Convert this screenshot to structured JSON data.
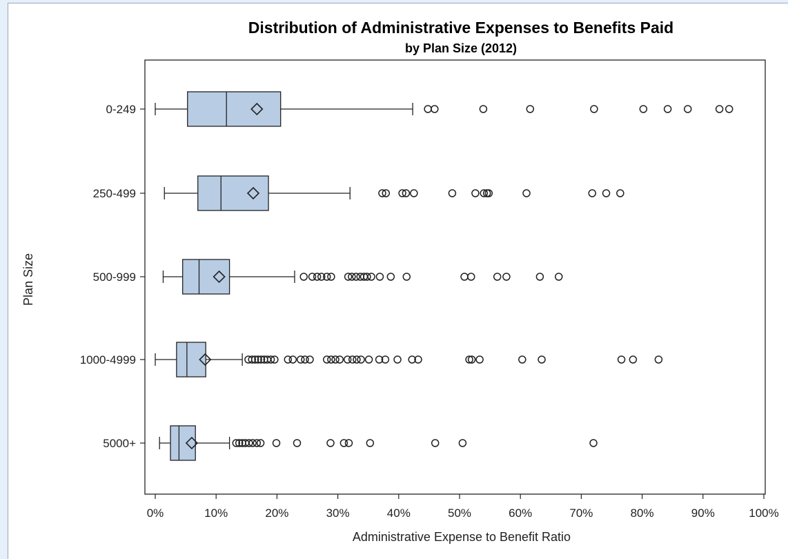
{
  "chart_data": {
    "type": "boxplot",
    "title": "Distribution of Administrative Expenses to Benefits Paid",
    "subtitle": "by Plan Size (2012)",
    "xlabel": "Administrative Expense to Benefit Ratio",
    "ylabel": "Plan Size",
    "xlim": [
      0,
      100
    ],
    "x_ticks": [
      0,
      10,
      20,
      30,
      40,
      50,
      60,
      70,
      80,
      90,
      100
    ],
    "x_tick_labels": [
      "0%",
      "10%",
      "20%",
      "30%",
      "40%",
      "50%",
      "60%",
      "70%",
      "80%",
      "90%",
      "100%"
    ],
    "orientation": "horizontal",
    "grid": false,
    "colors": {
      "box_fill": "#b8cce4",
      "stroke": "#222222"
    },
    "categories": [
      "0-249",
      "250-499",
      "500-999",
      "1000-4999",
      "5000+"
    ],
    "series": [
      {
        "category": "0-249",
        "whisker_low": 0,
        "q1": 5.3,
        "median": 11.7,
        "q3": 20.6,
        "whisker_high": 42.3,
        "mean": 16.7,
        "outliers": [
          44.8,
          45.9,
          53.9,
          61.6,
          72.1,
          80.2,
          84.2,
          87.5,
          92.7,
          94.3
        ]
      },
      {
        "category": "250-499",
        "whisker_low": 1.5,
        "q1": 7.0,
        "median": 10.8,
        "q3": 18.6,
        "whisker_high": 32.0,
        "mean": 16.1,
        "outliers": [
          37.3,
          37.9,
          40.6,
          41.2,
          42.5,
          48.8,
          52.6,
          54.0,
          54.5,
          54.8,
          61.0,
          71.8,
          74.1,
          76.4
        ]
      },
      {
        "category": "500-999",
        "whisker_low": 1.3,
        "q1": 4.5,
        "median": 7.2,
        "q3": 12.2,
        "whisker_high": 22.9,
        "mean": 10.5,
        "outliers": [
          24.4,
          25.8,
          26.6,
          27.3,
          28.2,
          28.9,
          31.7,
          32.3,
          33.0,
          33.7,
          34.3,
          34.8,
          35.5,
          36.9,
          38.7,
          41.3,
          50.8,
          51.9,
          56.2,
          57.7,
          63.2,
          66.3
        ]
      },
      {
        "category": "1000-4999",
        "whisker_low": 0,
        "q1": 3.5,
        "median": 5.2,
        "q3": 8.3,
        "whisker_high": 14.3,
        "mean": 8.2,
        "outliers": [
          15.3,
          15.9,
          16.4,
          16.9,
          17.4,
          17.9,
          18.4,
          19.0,
          19.6,
          21.8,
          22.6,
          23.9,
          24.6,
          25.4,
          28.2,
          28.9,
          29.6,
          30.3,
          31.6,
          32.4,
          33.1,
          33.8,
          35.1,
          36.8,
          37.8,
          39.8,
          42.2,
          43.2,
          51.6,
          52.0,
          53.3,
          60.3,
          63.5,
          76.6,
          78.5,
          82.7
        ]
      },
      {
        "category": "5000+",
        "whisker_low": 0.7,
        "q1": 2.5,
        "median": 3.9,
        "q3": 6.6,
        "whisker_high": 12.2,
        "mean": 6.0,
        "outliers": [
          13.3,
          13.8,
          14.3,
          14.8,
          15.4,
          16.0,
          16.7,
          17.3,
          19.9,
          23.3,
          28.8,
          31.0,
          31.8,
          35.3,
          46.0,
          50.5,
          72.0
        ]
      }
    ]
  }
}
